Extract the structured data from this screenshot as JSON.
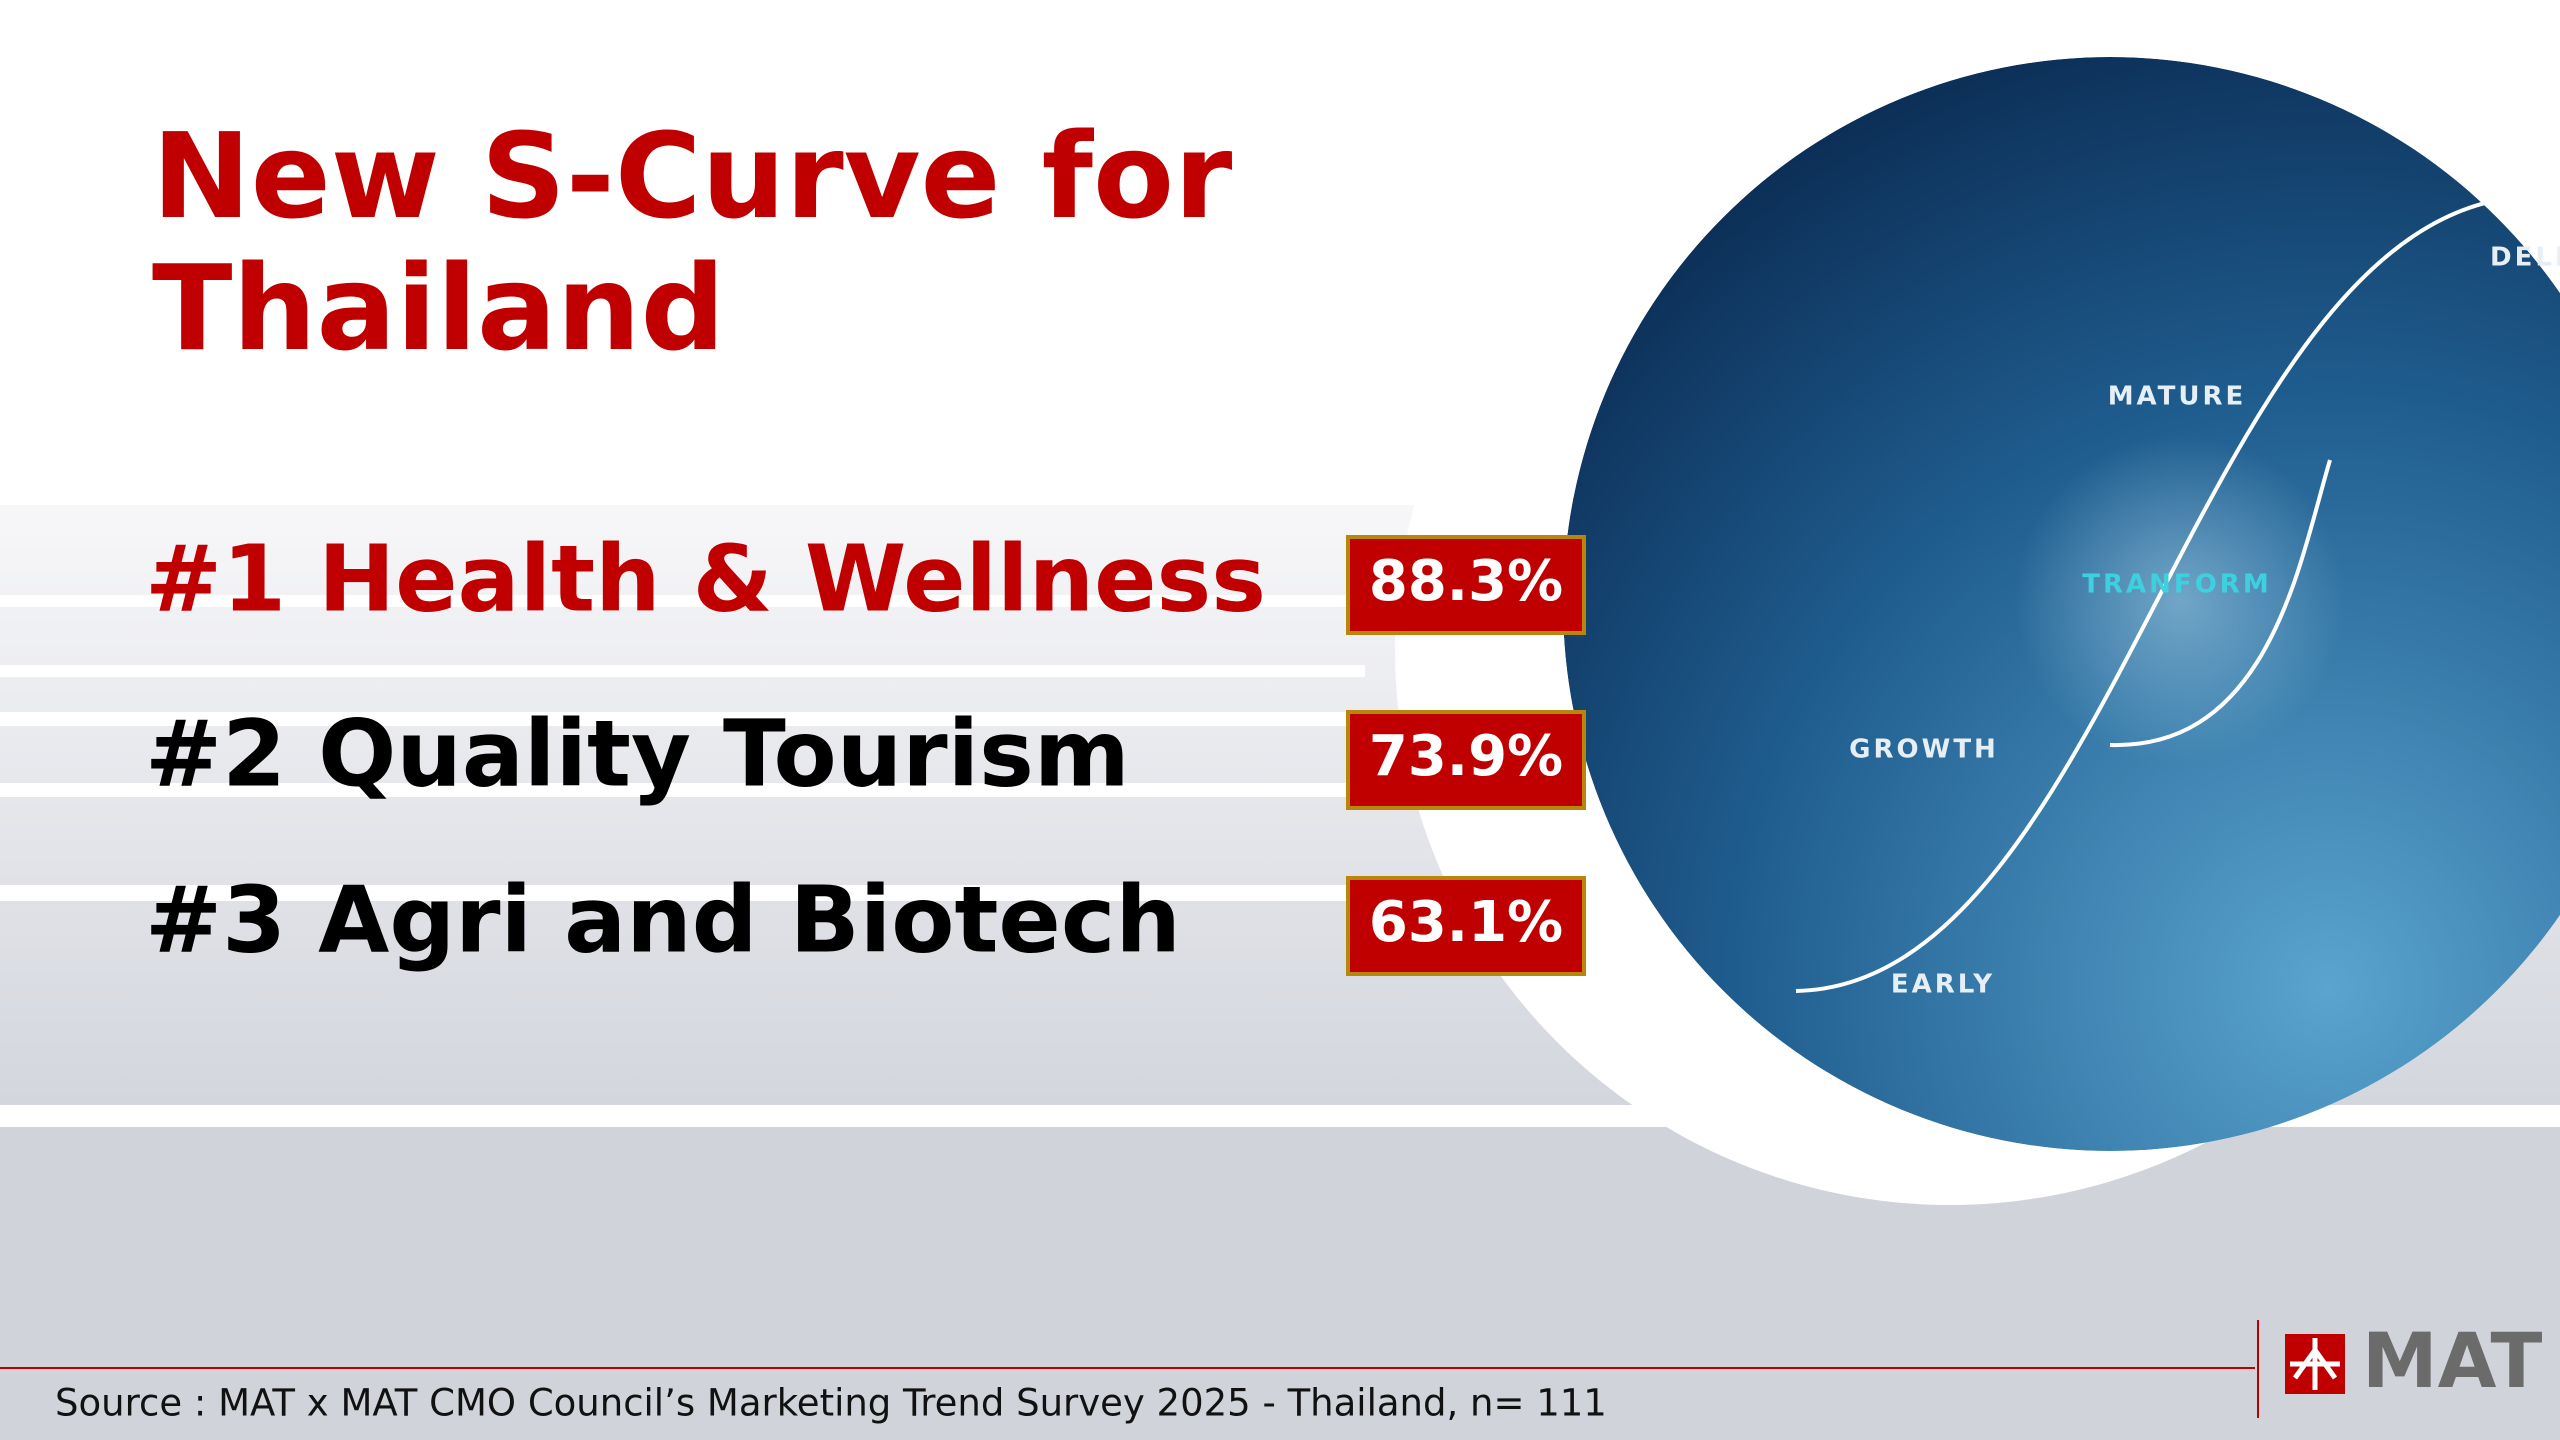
{
  "title": "New S-Curve for Thailand",
  "items": [
    {
      "text": "#1 Health & Wellness",
      "value": "88.3%"
    },
    {
      "text": "#2 Quality Tourism",
      "value": "73.9%"
    },
    {
      "text": "#3 Agri and Biotech",
      "value": "63.1%"
    }
  ],
  "illustration": {
    "labels": [
      "DELIN",
      "MATURE",
      "TRANFORM",
      "GROWTH",
      "EARLY"
    ]
  },
  "source": "Source : MAT x MAT CMO Council’s Marketing Trend Survey 2025 - Thailand, n= 111",
  "logo": "MAT"
}
